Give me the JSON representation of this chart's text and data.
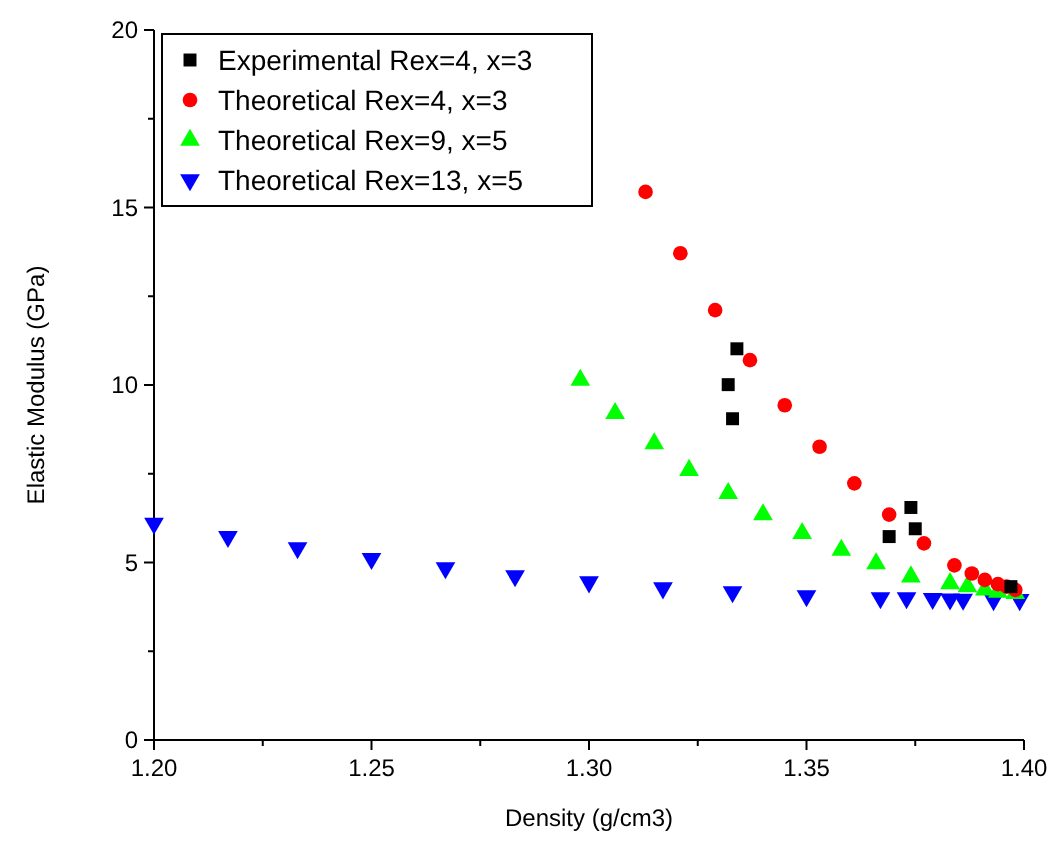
{
  "chart_data": {
    "type": "scatter",
    "xlabel": "Density (g/cm3)",
    "ylabel": "Elastic Modulus (GPa)",
    "xlim": [
      1.2,
      1.4
    ],
    "ylim": [
      0,
      20
    ],
    "xticks": [
      {
        "value": 1.2,
        "label": "1.20"
      },
      {
        "value": 1.225,
        "label": null
      },
      {
        "value": 1.25,
        "label": "1.25"
      },
      {
        "value": 1.275,
        "label": null
      },
      {
        "value": 1.3,
        "label": "1.30"
      },
      {
        "value": 1.325,
        "label": null
      },
      {
        "value": 1.35,
        "label": "1.35"
      },
      {
        "value": 1.375,
        "label": null
      },
      {
        "value": 1.4,
        "label": "1.40"
      }
    ],
    "yticks": [
      0,
      {
        "value": 2.5,
        "label": null
      },
      5,
      {
        "value": 7.5,
        "label": null
      },
      10,
      {
        "value": 12.5,
        "label": null
      },
      15,
      {
        "value": 17.5,
        "label": null
      },
      20
    ],
    "legend": "top left",
    "grid": false,
    "series": [
      {
        "name": "Experimental Rex=4, x=3",
        "color": "#000000",
        "marker": "square",
        "x": [
          1.332,
          1.333,
          1.334,
          1.369,
          1.374,
          1.375,
          1.397
        ],
        "values": [
          10.01,
          9.05,
          11.02,
          5.73,
          6.55,
          5.95,
          4.32
        ]
      },
      {
        "name": "Theoretical Rex=4, x=3",
        "color": "#ff0000",
        "marker": "circle",
        "x": [
          1.313,
          1.321,
          1.329,
          1.337,
          1.345,
          1.353,
          1.361,
          1.369,
          1.377,
          1.384,
          1.388,
          1.391,
          1.394,
          1.396,
          1.398
        ],
        "values": [
          15.44,
          13.71,
          12.11,
          10.7,
          9.43,
          8.26,
          7.23,
          6.35,
          5.54,
          4.92,
          4.69,
          4.51,
          4.39,
          4.32,
          4.23
        ]
      },
      {
        "name": "Theoretical Rex=9, x=5",
        "color": "#00ff00",
        "marker": "triangle",
        "x": [
          1.298,
          1.306,
          1.315,
          1.323,
          1.332,
          1.34,
          1.349,
          1.358,
          1.366,
          1.374,
          1.383,
          1.387,
          1.391,
          1.394,
          1.398
        ],
        "values": [
          10.14,
          9.2,
          8.35,
          7.6,
          6.95,
          6.35,
          5.82,
          5.35,
          4.97,
          4.6,
          4.41,
          4.32,
          4.23,
          4.17,
          4.13
        ]
      },
      {
        "name": "Theoretical Rex=13, x=5",
        "color": "#0000ff",
        "marker": "triangle-down",
        "x": [
          1.2,
          1.217,
          1.233,
          1.25,
          1.267,
          1.283,
          1.3,
          1.317,
          1.333,
          1.35,
          1.367,
          1.373,
          1.379,
          1.383,
          1.386,
          1.393,
          1.399
        ],
        "values": [
          6.1,
          5.73,
          5.41,
          5.11,
          4.85,
          4.62,
          4.45,
          4.28,
          4.17,
          4.06,
          4.0,
          4.0,
          3.98,
          3.97,
          3.96,
          3.95,
          3.95
        ]
      }
    ]
  }
}
